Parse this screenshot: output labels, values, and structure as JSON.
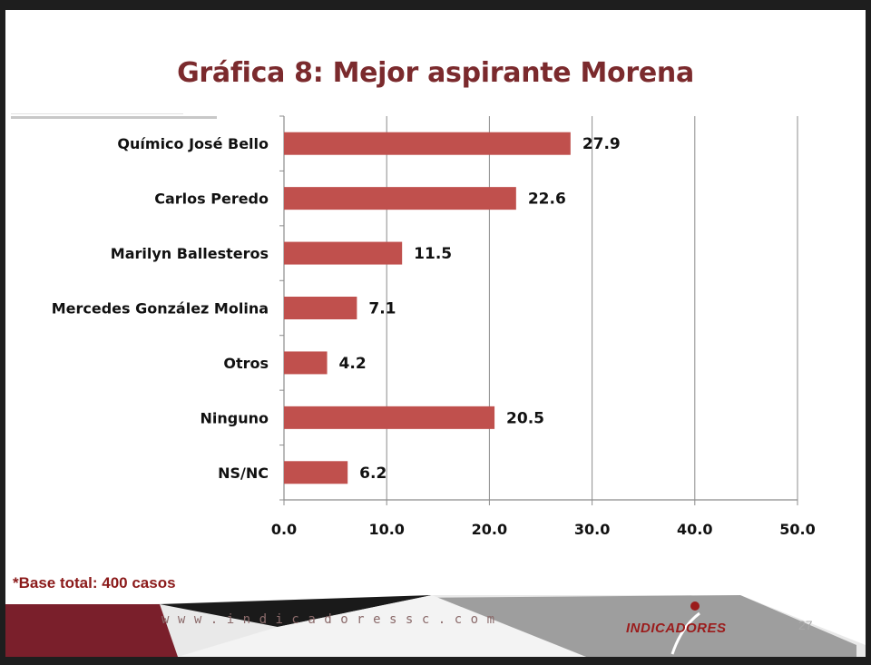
{
  "slide": {
    "title": "Gráfica 8: Mejor aspirante Morena",
    "footnote": "*Base total: 400 casos",
    "website": "www.indicadoressc.com",
    "logo_text": "INDICADORES",
    "page_number": "27"
  },
  "colors": {
    "bar": "#c0504d",
    "title": "#7b2a2d",
    "footer_dark": "#7a1f2b",
    "footer_gray": "#9e9e9e"
  },
  "chart_data": {
    "type": "bar",
    "orientation": "horizontal",
    "title": "Gráfica 8: Mejor aspirante Morena",
    "categories": [
      "Químico José Bello",
      "Carlos Peredo",
      "Marilyn Ballesteros",
      "Mercedes González Molina",
      "Otros",
      "Ninguno",
      "NS/NC"
    ],
    "values": [
      27.9,
      22.6,
      11.5,
      7.1,
      4.2,
      20.5,
      6.2
    ],
    "value_labels": [
      "27.9",
      "22.6",
      "11.5",
      "7.1",
      "4.2",
      "20.5",
      "6.2"
    ],
    "xlim": [
      0,
      50
    ],
    "xticks": [
      0,
      10,
      20,
      30,
      40,
      50
    ],
    "xtick_labels": [
      "0.0",
      "10.0",
      "20.0",
      "30.0",
      "40.0",
      "50.0"
    ],
    "xlabel": "",
    "ylabel": "",
    "grid": "vertical",
    "legend": "none"
  }
}
